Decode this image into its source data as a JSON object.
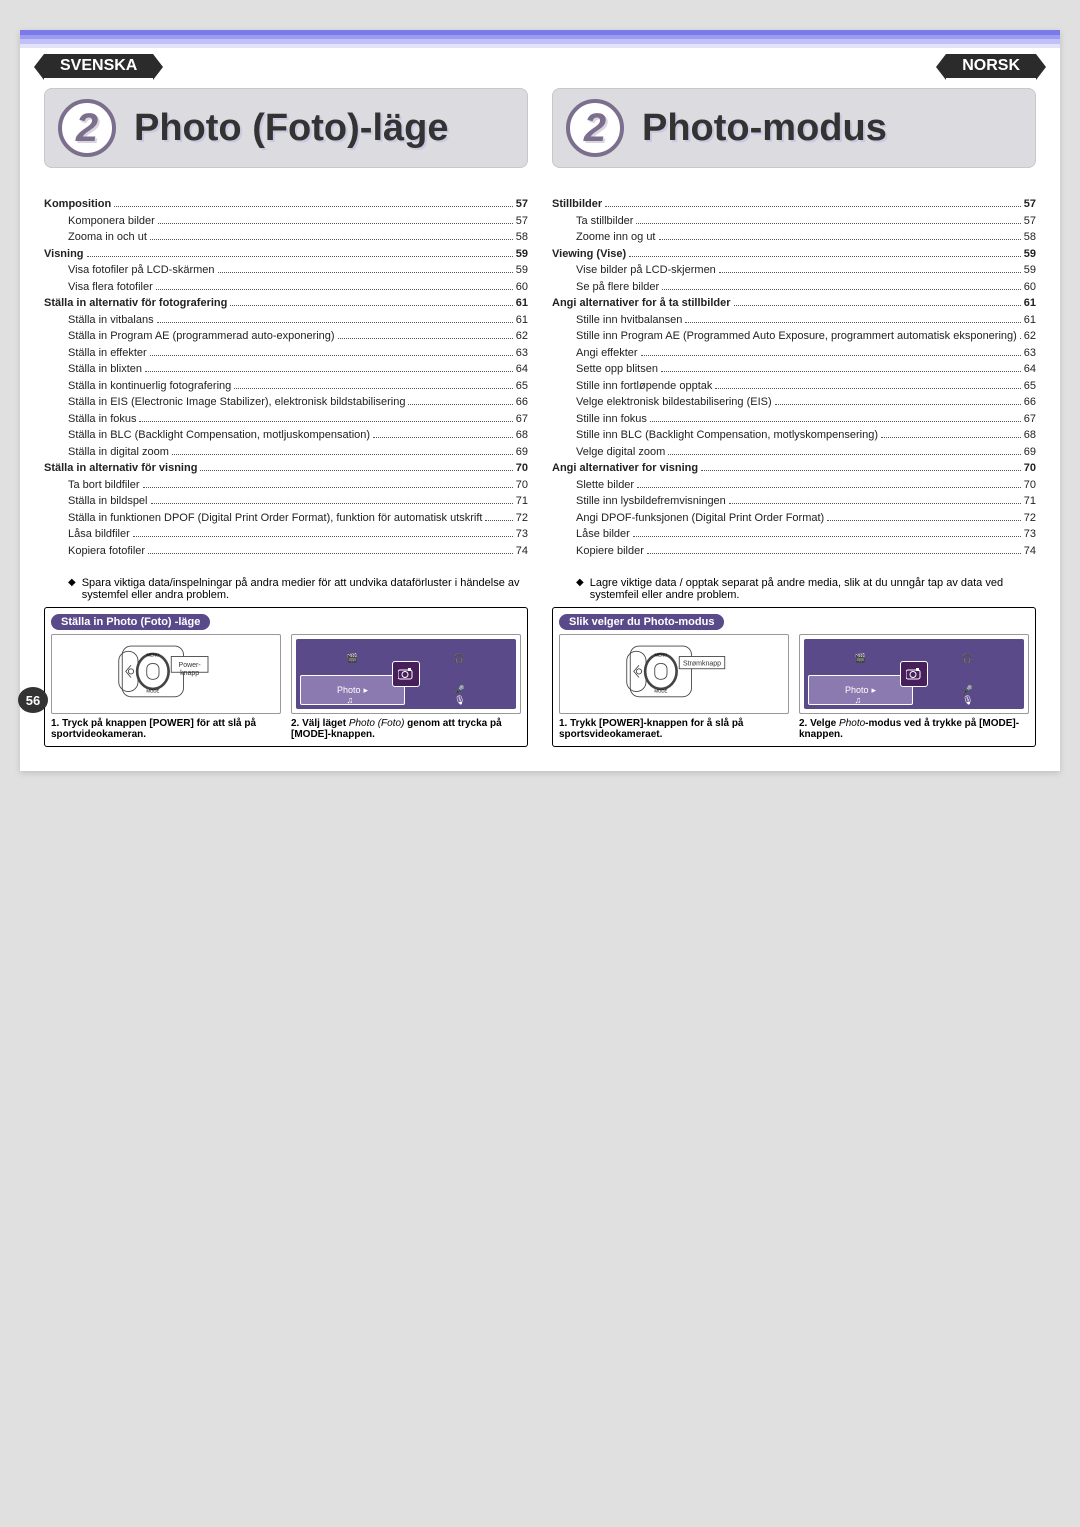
{
  "page_number": "56",
  "svenska": {
    "lang_label": "SVENSKA",
    "chapter_number": "2",
    "chapter_title": "Photo (Foto)-läge",
    "toc": [
      {
        "label": "Komposition",
        "page": "57",
        "bold": true,
        "indent": 0
      },
      {
        "label": "Komponera bilder",
        "page": "57",
        "bold": false,
        "indent": 1
      },
      {
        "label": "Zooma in och ut",
        "page": "58",
        "bold": false,
        "indent": 1
      },
      {
        "label": "Visning",
        "page": "59",
        "bold": true,
        "indent": 0
      },
      {
        "label": "Visa fotofiler på LCD-skärmen",
        "page": "59",
        "bold": false,
        "indent": 1
      },
      {
        "label": "Visa flera fotofiler",
        "page": "60",
        "bold": false,
        "indent": 1
      },
      {
        "label": "Ställa in alternativ för fotografering",
        "page": "61",
        "bold": true,
        "indent": 0
      },
      {
        "label": "Ställa in vitbalans",
        "page": "61",
        "bold": false,
        "indent": 1
      },
      {
        "label": "Ställa in Program AE (programmerad auto-exponering)",
        "page": "62",
        "bold": false,
        "indent": 1
      },
      {
        "label": "Ställa in effekter",
        "page": "63",
        "bold": false,
        "indent": 1
      },
      {
        "label": "Ställa in blixten",
        "page": "64",
        "bold": false,
        "indent": 1
      },
      {
        "label": "Ställa in kontinuerlig fotografering",
        "page": "65",
        "bold": false,
        "indent": 1
      },
      {
        "label": "Ställa in EIS (Electronic Image Stabilizer), elektronisk bildstabilisering",
        "page": "66",
        "bold": false,
        "indent": 1
      },
      {
        "label": "Ställa in fokus",
        "page": "67",
        "bold": false,
        "indent": 1
      },
      {
        "label": "Ställa in BLC (Backlight Compensation, motljuskompensation)",
        "page": "68",
        "bold": false,
        "indent": 1
      },
      {
        "label": "Ställa in digital zoom",
        "page": "69",
        "bold": false,
        "indent": 1
      },
      {
        "label": "Ställa in alternativ för visning",
        "page": "70",
        "bold": true,
        "indent": 0
      },
      {
        "label": "Ta bort bildfiler",
        "page": "70",
        "bold": false,
        "indent": 1
      },
      {
        "label": "Ställa in bildspel",
        "page": "71",
        "bold": false,
        "indent": 1
      },
      {
        "label": "Ställa in funktionen DPOF (Digital Print Order Format), funktion för automatisk utskrift",
        "page": "72",
        "bold": false,
        "indent": 1
      },
      {
        "label": "Låsa bildfiler",
        "page": "73",
        "bold": false,
        "indent": 1
      },
      {
        "label": "Kopiera fotofiler",
        "page": "74",
        "bold": false,
        "indent": 1
      }
    ],
    "note": "Spara viktiga data/inspelningar på andra medier för att undvika dataförluster i händelse av systemfel eller andra problem.",
    "howto_title": "Ställa in Photo (Foto) -läge",
    "power_label": "Power-knapp",
    "step1": "1. Tryck på knappen [POWER] för att slå på sportvideokameran.",
    "step2_a": "2. Välj läget ",
    "step2_b": "Photo (Foto)",
    "step2_c": " genom att trycka på [MODE]-knappen.",
    "mode_photo": "Photo"
  },
  "norsk": {
    "lang_label": "NORSK",
    "chapter_number": "2",
    "chapter_title": "Photo-modus",
    "toc": [
      {
        "label": "Stillbilder",
        "page": "57",
        "bold": true,
        "indent": 0
      },
      {
        "label": "Ta stillbilder",
        "page": "57",
        "bold": false,
        "indent": 1
      },
      {
        "label": "Zoome inn og ut",
        "page": "58",
        "bold": false,
        "indent": 1
      },
      {
        "label": "Viewing (Vise)",
        "page": "59",
        "bold": true,
        "indent": 0
      },
      {
        "label": "Vise bilder på LCD-skjermen",
        "page": "59",
        "bold": false,
        "indent": 1
      },
      {
        "label": "Se på flere bilder",
        "page": "60",
        "bold": false,
        "indent": 1
      },
      {
        "label": "Angi alternativer for å ta stillbilder",
        "page": "61",
        "bold": true,
        "indent": 0
      },
      {
        "label": "Stille inn hvitbalansen",
        "page": "61",
        "bold": false,
        "indent": 1
      },
      {
        "label": "Stille inn Program AE (Programmed Auto Exposure, programmert automatisk eksponering)",
        "page": "62",
        "bold": false,
        "indent": 1
      },
      {
        "label": "Angi effekter",
        "page": "63",
        "bold": false,
        "indent": 1
      },
      {
        "label": "Sette opp blitsen",
        "page": "64",
        "bold": false,
        "indent": 1
      },
      {
        "label": "Stille inn fortløpende opptak",
        "page": "65",
        "bold": false,
        "indent": 1
      },
      {
        "label": "Velge elektronisk bildestabilisering (EIS)",
        "page": "66",
        "bold": false,
        "indent": 1
      },
      {
        "label": "Stille inn fokus",
        "page": "67",
        "bold": false,
        "indent": 1
      },
      {
        "label": "Stille inn BLC (Backlight Compensation, motlyskompensering)",
        "page": "68",
        "bold": false,
        "indent": 1
      },
      {
        "label": "Velge digital zoom",
        "page": "69",
        "bold": false,
        "indent": 1
      },
      {
        "label": "Angi alternativer for visning",
        "page": "70",
        "bold": true,
        "indent": 0
      },
      {
        "label": "Slette bilder",
        "page": "70",
        "bold": false,
        "indent": 1
      },
      {
        "label": "Stille inn lysbildefremvisningen",
        "page": "71",
        "bold": false,
        "indent": 1
      },
      {
        "label": "Angi DPOF-funksjonen (Digital Print Order Format)",
        "page": "72",
        "bold": false,
        "indent": 1
      },
      {
        "label": "Låse bilder",
        "page": "73",
        "bold": false,
        "indent": 1
      },
      {
        "label": "Kopiere bilder",
        "page": "74",
        "bold": false,
        "indent": 1
      }
    ],
    "note": "Lagre viktige data / opptak separat på andre media, slik at du unngår tap av data ved systemfeil eller andre problem.",
    "howto_title": "Slik velger du Photo-modus",
    "power_label": "Strømknapp",
    "step1": "1. Trykk [POWER]-knappen for å slå på sportsvideokameraet.",
    "step2_a": "2. Velge ",
    "step2_b": "Photo",
    "step2_c": "-modus ved å trykke på [MODE]-knappen.",
    "mode_photo": "Photo"
  },
  "colors": {
    "accent": "#5b4a8a",
    "chapter_bg": "#dcdbe0",
    "text": "#222222"
  }
}
